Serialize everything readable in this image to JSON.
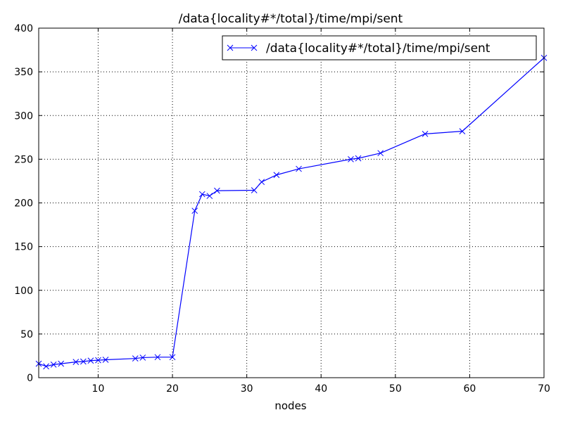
{
  "chart_data": {
    "type": "line",
    "title": "/data{locality#*/total}/time/mpi/sent",
    "xlabel": "nodes",
    "ylabel": "",
    "xlim": [
      2,
      70
    ],
    "ylim": [
      0,
      400
    ],
    "xticks": [
      10,
      20,
      30,
      40,
      50,
      60,
      70
    ],
    "yticks": [
      0,
      50,
      100,
      150,
      200,
      250,
      300,
      350,
      400
    ],
    "grid": true,
    "legend_position": "top-right",
    "series": [
      {
        "name": "/data{locality#*/total}/time/mpi/sent",
        "color": "#0000ff",
        "marker": "x",
        "x": [
          2,
          3,
          4,
          5,
          7,
          8,
          9,
          10,
          11,
          15,
          16,
          18,
          20,
          23,
          24,
          25,
          26,
          31,
          32,
          34,
          37,
          44,
          45,
          48,
          54,
          59,
          70
        ],
        "y": [
          16,
          13,
          15,
          16,
          18,
          18.5,
          19.5,
          20,
          20.5,
          22,
          23,
          23.5,
          23.5,
          191,
          210,
          208,
          214,
          214.5,
          224,
          232,
          239,
          250,
          251,
          257,
          279,
          282,
          366
        ]
      }
    ]
  }
}
